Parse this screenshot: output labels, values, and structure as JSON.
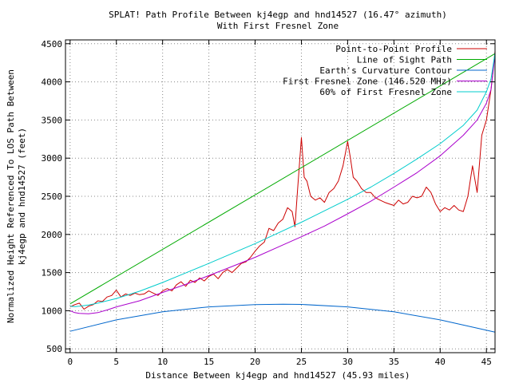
{
  "chart_data": {
    "type": "line",
    "title": "SPLAT! Path Profile Between kj4egp and hnd14527 (16.47° azimuth)",
    "subtitle": "With First Fresnel Zone",
    "xlabel": "Distance Between kj4egp and hnd14527 (45.93 miles)",
    "ylabel_line1": "Normalized Height Referenced To LOS Path Between",
    "ylabel_line2": "kj4egp and hnd14527 (feet)",
    "xlim": [
      -0.5,
      45.93
    ],
    "ylim": [
      450,
      4550
    ],
    "x_ticks": [
      0,
      5,
      10,
      15,
      20,
      25,
      30,
      35,
      40,
      45
    ],
    "y_ticks": [
      500,
      1000,
      1500,
      2000,
      2500,
      3000,
      3500,
      4000,
      4500
    ],
    "x_tick_labels": [
      "0",
      "5",
      "10",
      "15",
      "20",
      "25",
      "30",
      "35",
      "40",
      "45"
    ],
    "y_tick_labels": [
      "500",
      "1000",
      "1500",
      "2000",
      "2500",
      "3000",
      "3500",
      "4000",
      "4500"
    ],
    "grid": true,
    "legend_position": "top-right",
    "series": [
      {
        "name": "Point-to-Point Profile",
        "color": "#cc0000",
        "x": [
          0,
          0.5,
          1,
          1.5,
          2,
          2.5,
          3,
          3.5,
          4,
          4.5,
          5,
          5.5,
          6,
          6.5,
          7,
          7.5,
          8,
          8.5,
          9,
          9.5,
          10,
          10.5,
          11,
          11.5,
          12,
          12.5,
          13,
          13.5,
          14,
          14.5,
          15,
          15.5,
          16,
          16.5,
          17,
          17.5,
          18,
          18.5,
          19,
          19.5,
          20,
          20.5,
          21,
          21.5,
          22,
          22.5,
          23,
          23.5,
          24,
          24.3,
          24.6,
          25,
          25.3,
          25.6,
          26,
          26.5,
          27,
          27.5,
          28,
          28.5,
          29,
          29.5,
          30,
          30.3,
          30.6,
          31,
          31.5,
          32,
          32.5,
          33,
          33.5,
          34,
          34.5,
          35,
          35.5,
          36,
          36.5,
          37,
          37.5,
          38,
          38.5,
          39,
          39.5,
          40,
          40.5,
          41,
          41.5,
          42,
          42.5,
          43,
          43.5,
          44,
          44.5,
          45,
          45.5,
          45.93
        ],
        "y": [
          1050,
          1080,
          1100,
          1020,
          1060,
          1080,
          1130,
          1120,
          1180,
          1200,
          1270,
          1180,
          1220,
          1200,
          1230,
          1210,
          1220,
          1260,
          1230,
          1200,
          1260,
          1290,
          1260,
          1340,
          1380,
          1320,
          1400,
          1370,
          1430,
          1390,
          1450,
          1480,
          1420,
          1500,
          1540,
          1500,
          1560,
          1620,
          1640,
          1700,
          1780,
          1850,
          1900,
          2080,
          2050,
          2150,
          2200,
          2350,
          2300,
          2100,
          2600,
          3270,
          2750,
          2700,
          2500,
          2450,
          2480,
          2420,
          2550,
          2600,
          2700,
          2900,
          3220,
          3000,
          2750,
          2700,
          2600,
          2550,
          2550,
          2480,
          2450,
          2420,
          2400,
          2380,
          2450,
          2400,
          2420,
          2500,
          2480,
          2500,
          2620,
          2550,
          2400,
          2300,
          2350,
          2320,
          2380,
          2320,
          2300,
          2500,
          2900,
          2550,
          3300,
          3500,
          3900,
          4400
        ]
      },
      {
        "name": "Line of Sight Path",
        "color": "#00aa00",
        "x": [
          0,
          45.93
        ],
        "y": [
          1090,
          4370
        ]
      },
      {
        "name": "Earth's Curvature Contour",
        "color": "#0066cc",
        "x": [
          0,
          5,
          10,
          15,
          20,
          23,
          25,
          30,
          35,
          40,
          45.93
        ],
        "y": [
          730,
          880,
          985,
          1050,
          1080,
          1085,
          1083,
          1050,
          985,
          880,
          720
        ]
      },
      {
        "name": "First Fresnel Zone (146.520 MHz)",
        "color": "#aa00cc",
        "x": [
          0,
          0.5,
          1,
          2,
          3,
          4,
          5,
          7.5,
          10,
          12.5,
          15,
          17.5,
          20,
          22.5,
          25,
          27.5,
          30,
          32.5,
          35,
          37.5,
          40,
          42.5,
          44,
          45,
          45.5,
          45.93
        ],
        "y": [
          1000,
          975,
          965,
          960,
          975,
          1010,
          1050,
          1130,
          1240,
          1345,
          1460,
          1580,
          1700,
          1835,
          1970,
          2110,
          2270,
          2435,
          2620,
          2810,
          3030,
          3300,
          3500,
          3720,
          3900,
          4360
        ]
      },
      {
        "name": "60% of First Fresnel Zone",
        "color": "#00cccc",
        "x": [
          0,
          0.5,
          1,
          2,
          3,
          4,
          5,
          7.5,
          10,
          12.5,
          15,
          17.5,
          20,
          22.5,
          25,
          27.5,
          30,
          32.5,
          35,
          37.5,
          40,
          42.5,
          44,
          45,
          45.5,
          45.93
        ],
        "y": [
          1060,
          1055,
          1060,
          1075,
          1100,
          1130,
          1160,
          1255,
          1370,
          1495,
          1620,
          1750,
          1880,
          2020,
          2160,
          2310,
          2460,
          2620,
          2800,
          2990,
          3190,
          3430,
          3630,
          3870,
          4040,
          4380
        ]
      }
    ]
  }
}
